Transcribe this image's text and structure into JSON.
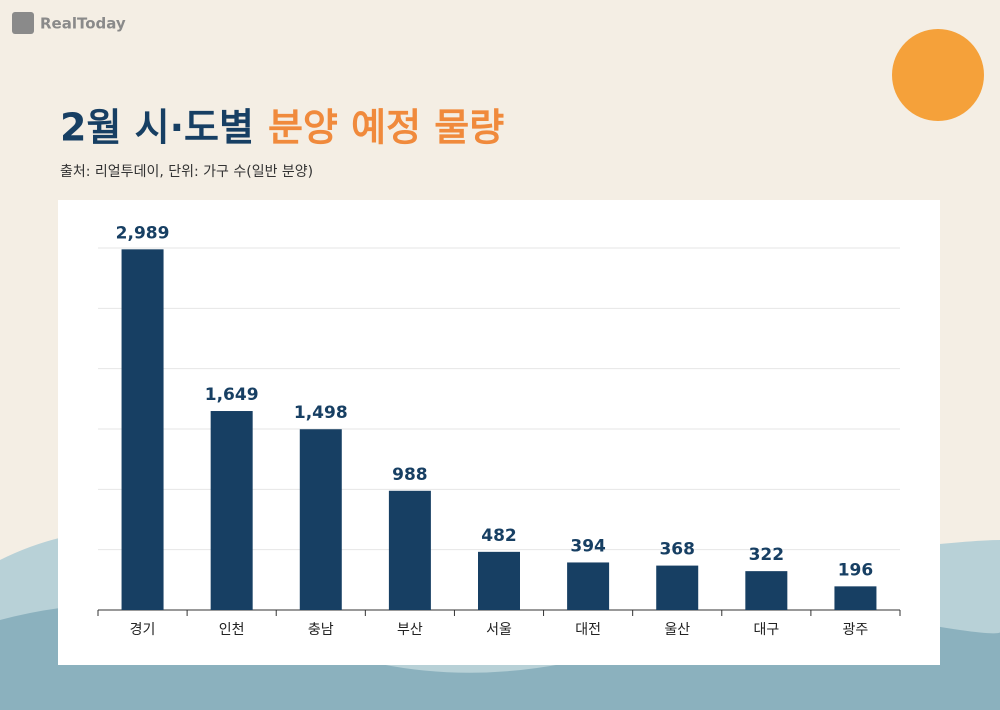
{
  "brand": "RealToday",
  "chart_data": {
    "type": "bar",
    "title": "2월 시·도별",
    "title_highlight": "분양 예정 물량",
    "subtitle": "출처: 리얼투데이, 단위: 가구 수(일반 분양)",
    "categories": [
      "경기",
      "인천",
      "충남",
      "부산",
      "서울",
      "대전",
      "울산",
      "대구",
      "광주"
    ],
    "values": [
      2989,
      1649,
      1498,
      988,
      482,
      394,
      368,
      322,
      196
    ],
    "value_labels": [
      "2,989",
      "1,649",
      "1,498",
      "988",
      "482",
      "394",
      "368",
      "322",
      "196"
    ],
    "color": "#173f63",
    "ylim": [
      0,
      3000
    ],
    "yticks": [
      0,
      500,
      1000,
      1500,
      2000,
      2500,
      3000
    ],
    "grid": true
  }
}
